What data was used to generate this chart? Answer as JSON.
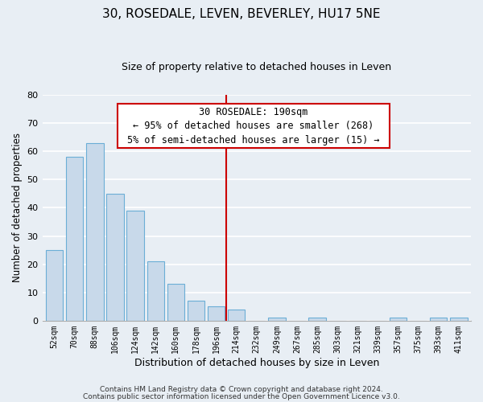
{
  "title": "30, ROSEDALE, LEVEN, BEVERLEY, HU17 5NE",
  "subtitle": "Size of property relative to detached houses in Leven",
  "xlabel": "Distribution of detached houses by size in Leven",
  "ylabel": "Number of detached properties",
  "bar_labels": [
    "52sqm",
    "70sqm",
    "88sqm",
    "106sqm",
    "124sqm",
    "142sqm",
    "160sqm",
    "178sqm",
    "196sqm",
    "214sqm",
    "232sqm",
    "249sqm",
    "267sqm",
    "285sqm",
    "303sqm",
    "321sqm",
    "339sqm",
    "357sqm",
    "375sqm",
    "393sqm",
    "411sqm"
  ],
  "bar_values": [
    25,
    58,
    63,
    45,
    39,
    21,
    13,
    7,
    5,
    4,
    0,
    1,
    0,
    1,
    0,
    0,
    0,
    1,
    0,
    1,
    1
  ],
  "bar_color": "#c8d9ea",
  "bar_edge_color": "#6baed6",
  "ylim": [
    0,
    80
  ],
  "yticks": [
    0,
    10,
    20,
    30,
    40,
    50,
    60,
    70,
    80
  ],
  "vline_x": 8.5,
  "vline_color": "#cc0000",
  "annotation_title": "30 ROSEDALE: 190sqm",
  "annotation_line1": "← 95% of detached houses are smaller (268)",
  "annotation_line2": "5% of semi-detached houses are larger (15) →",
  "footer1": "Contains HM Land Registry data © Crown copyright and database right 2024.",
  "footer2": "Contains public sector information licensed under the Open Government Licence v3.0.",
  "background_color": "#e8eef4",
  "plot_bg_color": "#e8eef4",
  "grid_color": "#ffffff"
}
